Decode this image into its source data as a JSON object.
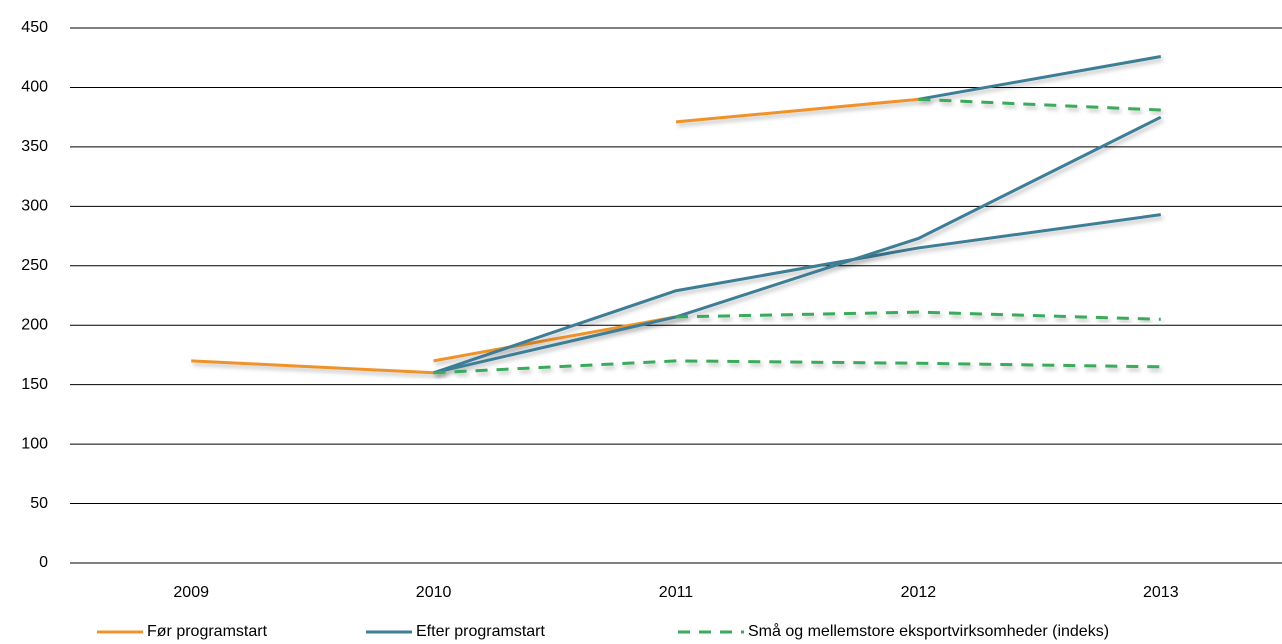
{
  "chart_data": {
    "type": "line",
    "categories": [
      "2009",
      "2010",
      "2011",
      "2012",
      "2013"
    ],
    "ylim": [
      0,
      450
    ],
    "yticks": [
      0,
      50,
      100,
      150,
      200,
      250,
      300,
      350,
      400,
      450
    ],
    "grid": true,
    "legend": "bottom",
    "series": [
      {
        "name": "Før programstart",
        "color": "#f0922b",
        "dashed": false,
        "lines": [
          [
            170,
            160,
            null,
            null,
            null
          ],
          [
            null,
            170,
            207,
            null,
            null
          ],
          [
            null,
            null,
            371,
            390,
            null
          ]
        ]
      },
      {
        "name": "Efter programstart",
        "color": "#3d7d96",
        "dashed": false,
        "lines": [
          [
            null,
            160,
            229,
            265,
            293
          ],
          [
            null,
            160,
            207,
            273,
            375
          ],
          [
            null,
            null,
            null,
            390,
            426
          ]
        ]
      },
      {
        "name": "Små og mellemstore eksportvirksomheder (indeks)",
        "color": "#3aaa5c",
        "dashed": true,
        "lines": [
          [
            null,
            160,
            170,
            168,
            165
          ],
          [
            null,
            null,
            207,
            211,
            205
          ],
          [
            null,
            null,
            null,
            390,
            381
          ]
        ]
      }
    ]
  }
}
